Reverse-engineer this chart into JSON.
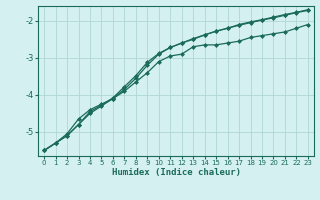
{
  "xlabel": "Humidex (Indice chaleur)",
  "bg_color": "#d4f0f0",
  "grid_color": "#b0d8d0",
  "line_color": "#1a6b5a",
  "xlim": [
    -0.5,
    23.5
  ],
  "ylim": [
    -5.65,
    -1.6
  ],
  "xticks": [
    0,
    1,
    2,
    3,
    4,
    5,
    6,
    7,
    8,
    9,
    10,
    11,
    12,
    13,
    14,
    15,
    16,
    17,
    18,
    19,
    20,
    21,
    22,
    23
  ],
  "yticks": [
    -5,
    -4,
    -3,
    -2
  ],
  "line1_x": [
    0,
    1,
    2,
    3,
    4,
    5,
    6,
    7,
    8,
    9,
    10,
    11,
    12,
    13,
    14,
    15,
    16,
    17,
    18,
    19,
    20,
    21,
    22,
    23
  ],
  "line1_y": [
    -5.5,
    -5.3,
    -5.05,
    -4.65,
    -4.4,
    -4.25,
    -4.1,
    -3.9,
    -3.65,
    -3.4,
    -3.1,
    -2.95,
    -2.9,
    -2.7,
    -2.65,
    -2.65,
    -2.6,
    -2.55,
    -2.45,
    -2.4,
    -2.35,
    -2.3,
    -2.2,
    -2.1
  ],
  "line2_x": [
    0,
    1,
    2,
    3,
    4,
    5,
    6,
    7,
    8,
    9,
    10,
    11,
    12,
    13,
    14,
    15,
    16,
    17,
    18,
    19,
    20,
    21,
    22,
    23
  ],
  "line2_y": [
    -5.5,
    -5.3,
    -5.1,
    -4.8,
    -4.5,
    -4.3,
    -4.1,
    -3.85,
    -3.55,
    -3.2,
    -2.9,
    -2.72,
    -2.6,
    -2.48,
    -2.38,
    -2.28,
    -2.2,
    -2.12,
    -2.05,
    -1.98,
    -1.92,
    -1.85,
    -1.78,
    -1.72
  ],
  "line3_x": [
    0,
    1,
    2,
    3,
    4,
    5,
    6,
    7,
    8,
    9,
    10,
    11,
    12,
    13,
    14,
    15,
    16,
    17,
    18,
    19,
    20,
    21,
    22,
    23
  ],
  "line3_y": [
    -5.5,
    -5.3,
    -5.1,
    -4.8,
    -4.45,
    -4.28,
    -4.08,
    -3.78,
    -3.48,
    -3.12,
    -2.88,
    -2.72,
    -2.6,
    -2.5,
    -2.38,
    -2.28,
    -2.2,
    -2.1,
    -2.03,
    -1.97,
    -1.9,
    -1.83,
    -1.77,
    -1.7
  ]
}
